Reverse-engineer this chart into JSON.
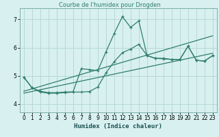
{
  "title": "Courbe de l'humidex pour Drogden",
  "xlabel": "Humidex (Indice chaleur)",
  "bg_color": "#d8f0f0",
  "grid_color": "#b8d8d8",
  "line_color": "#2e7d6e",
  "xlim": [
    -0.5,
    23.5
  ],
  "ylim": [
    3.7,
    7.4
  ],
  "yticks": [
    4,
    5,
    6,
    7
  ],
  "xticks": [
    0,
    1,
    2,
    3,
    4,
    5,
    6,
    7,
    8,
    9,
    10,
    11,
    12,
    13,
    14,
    15,
    16,
    17,
    18,
    19,
    20,
    21,
    22,
    23
  ],
  "series1_x": [
    0,
    1,
    2,
    3,
    4,
    5,
    6,
    7,
    8,
    9,
    10,
    11,
    12,
    13,
    14,
    15,
    16,
    17,
    18,
    19,
    20,
    21,
    22,
    23
  ],
  "series1_y": [
    4.95,
    4.57,
    4.45,
    4.4,
    4.4,
    4.42,
    4.43,
    5.25,
    5.22,
    5.18,
    5.85,
    6.5,
    7.1,
    6.72,
    6.95,
    5.72,
    5.62,
    5.62,
    5.58,
    5.58,
    6.05,
    5.55,
    5.52,
    5.72
  ],
  "series2_x": [
    0,
    1,
    2,
    3,
    4,
    5,
    6,
    7,
    8,
    9,
    10,
    11,
    12,
    13,
    14,
    15,
    16,
    17,
    18,
    19,
    20,
    21,
    22,
    23
  ],
  "series2_y": [
    4.95,
    4.57,
    4.42,
    4.38,
    4.38,
    4.4,
    4.42,
    4.42,
    4.44,
    4.6,
    5.1,
    5.5,
    5.82,
    5.95,
    6.12,
    5.72,
    5.62,
    5.6,
    5.58,
    5.58,
    6.05,
    5.55,
    5.52,
    5.72
  ],
  "trend1_x": [
    0,
    23
  ],
  "trend1_y": [
    4.45,
    6.42
  ],
  "trend2_x": [
    0,
    23
  ],
  "trend2_y": [
    4.38,
    5.8
  ]
}
